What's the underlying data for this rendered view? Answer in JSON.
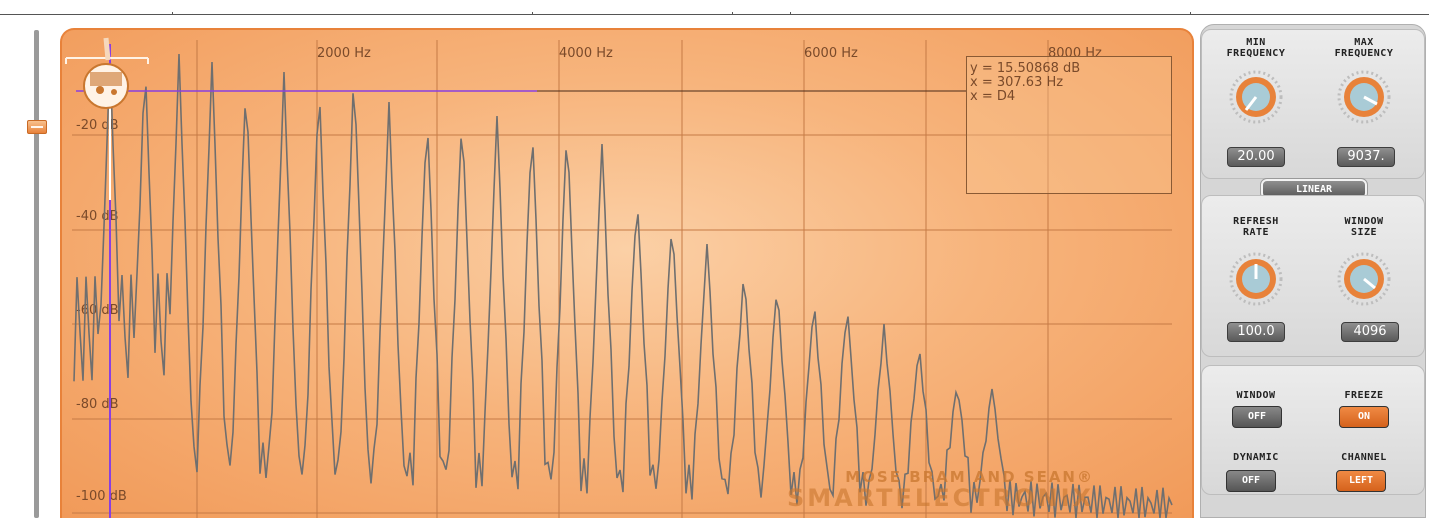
{
  "display": {
    "freq_ticks": [
      "2000 Hz",
      "4000 Hz",
      "6000 Hz",
      "8000 Hz"
    ],
    "db_ticks": [
      "-20 dB",
      "-40 dB",
      "-60 dB",
      "-80 dB",
      "-100 dB"
    ],
    "readout": {
      "y": "y = 15.50868 dB",
      "x_hz": "x = 307.63 Hz",
      "x_note": "x = D4"
    },
    "brand_line1": "MOSE BRAM AND SEAN®",
    "brand_line2": "SMARTELECTRONIX",
    "spectrum_color": "#6f6f6f",
    "cursor_color": "#8a3fe0"
  },
  "controls": {
    "min_frequency": {
      "label_line1": "MIN",
      "label_line2": "FREQUENCY",
      "value": "20.00"
    },
    "max_frequency": {
      "label_line1": "MAX",
      "label_line2": "FREQUENCY",
      "value": "9037."
    },
    "scale_mode": "LINEAR",
    "refresh_rate": {
      "label_line1": "REFRESH",
      "label_line2": "RATE",
      "value": "100.0"
    },
    "window_size": {
      "label_line1": "WINDOW",
      "label_line2": "SIZE",
      "value": "4096"
    },
    "window": {
      "label": "WINDOW",
      "state": "OFF"
    },
    "freeze": {
      "label": "FREEZE",
      "state": "ON"
    },
    "dynamic": {
      "label": "DYNAMIC",
      "state": "OFF"
    },
    "channel": {
      "label": "CHANNEL",
      "state": "LEFT"
    }
  },
  "colors": {
    "accent": "#e8823a",
    "panel": "#d6d6d6",
    "knob_face": "#a9cbd6"
  }
}
